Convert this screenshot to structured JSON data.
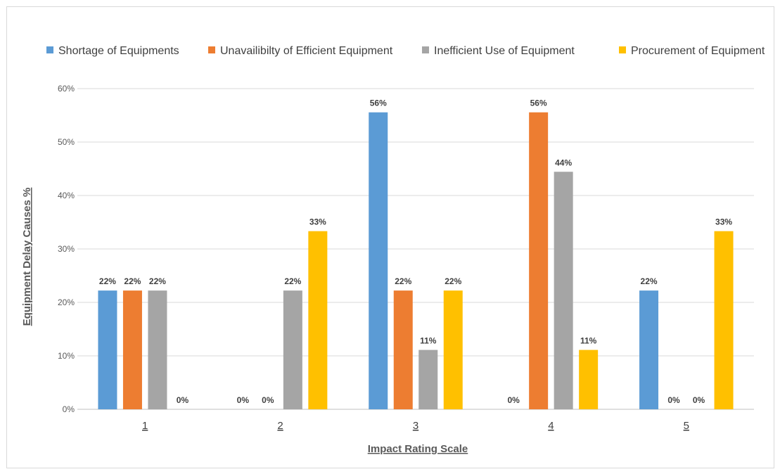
{
  "chart_data": {
    "type": "bar",
    "categories": [
      "1",
      "2",
      "3",
      "4",
      "5"
    ],
    "series": [
      {
        "name": "Shortage of Equipments",
        "color": "#5b9bd5",
        "values": [
          22,
          0,
          56,
          0,
          22
        ]
      },
      {
        "name": "Unavailibilty of Efficient Equipment",
        "color": "#ed7d31",
        "values": [
          22,
          0,
          22,
          56,
          0
        ]
      },
      {
        "name": "Inefficient Use of Equipment",
        "color": "#a5a5a5",
        "values": [
          22,
          22,
          11,
          44,
          0
        ]
      },
      {
        "name": "Procurement of Equipment",
        "color": "#ffc000",
        "values": [
          0,
          33,
          22,
          11,
          33
        ]
      }
    ],
    "value_labels": [
      [
        "22%",
        "0%",
        "56%",
        "0%",
        "22%"
      ],
      [
        "22%",
        "0%",
        "22%",
        "56%",
        "0%"
      ],
      [
        "22%",
        "22%",
        "11%",
        "44%",
        "0%"
      ],
      [
        "0%",
        "33%",
        "22%",
        "11%",
        "33%"
      ]
    ],
    "exact_values": [
      [
        22.22,
        0,
        55.56,
        0,
        22.22
      ],
      [
        22.22,
        0,
        22.22,
        55.56,
        0
      ],
      [
        22.22,
        22.22,
        11.11,
        44.44,
        0
      ],
      [
        0,
        33.33,
        22.22,
        11.11,
        33.33
      ]
    ],
    "title": "",
    "xlabel": "Impact Rating Scale",
    "ylabel": "Equipment Delay Causes %",
    "ylim": [
      0,
      60
    ],
    "yticks": [
      "0%",
      "10%",
      "20%",
      "30%",
      "40%",
      "50%",
      "60%"
    ],
    "grid": true,
    "legend_position": "top"
  }
}
